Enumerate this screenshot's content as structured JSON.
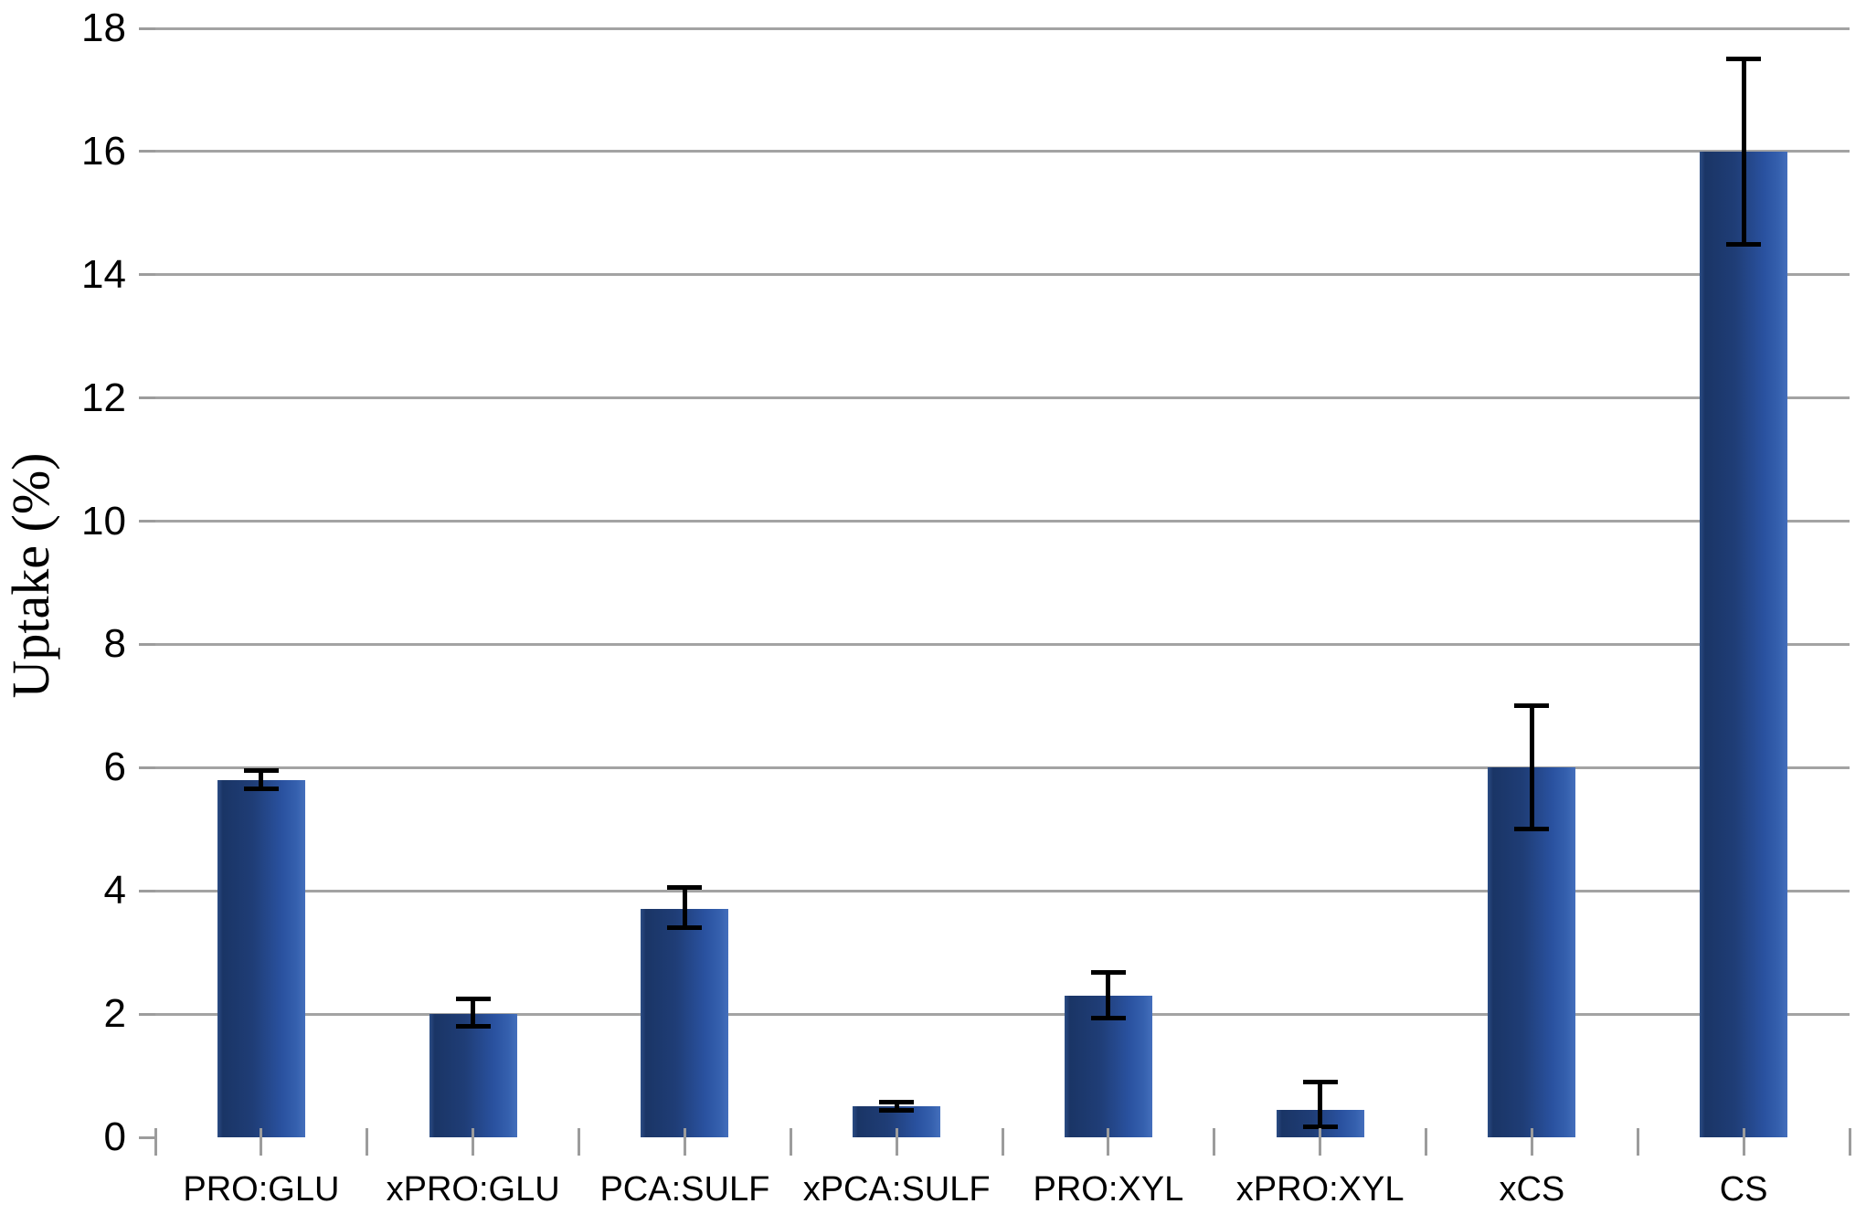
{
  "chart_data": {
    "type": "bar",
    "title": "",
    "ylabel": "Uptake (%)",
    "xlabel": "",
    "categories": [
      "PRO:GLU",
      "xPRO:GLU",
      "PCA:SULF",
      "xPCA:SULF",
      "PRO:XYL",
      "xPRO:XYL",
      "xCS",
      "CS"
    ],
    "values": [
      5.8,
      2.0,
      3.7,
      0.5,
      2.3,
      0.45,
      6.0,
      16.0
    ],
    "error_plus": [
      0.15,
      0.25,
      0.35,
      0.07,
      0.37,
      0.45,
      1.0,
      1.5
    ],
    "error_minus": [
      0.15,
      0.2,
      0.3,
      0.07,
      0.37,
      0.28,
      1.0,
      1.5
    ],
    "ylim": [
      0,
      18
    ],
    "yticks": [
      0,
      2,
      4,
      6,
      8,
      10,
      12,
      14,
      16,
      18
    ],
    "grid": true,
    "legend": false,
    "bar_style": "vertical-gradient-blue-excel"
  },
  "colors": {
    "bar_gradient": [
      [
        "#2c4d85",
        0
      ],
      [
        "#1a3566",
        6
      ],
      [
        "#1f3d76",
        40
      ],
      [
        "#2a52a0",
        74
      ],
      [
        "#3560ae",
        90
      ],
      [
        "#446fbc",
        100
      ]
    ],
    "gridline": "#a3a3a3",
    "axis": "#9c9c9c",
    "error_bar": "#000000",
    "text": "#000000",
    "background": "#ffffff"
  }
}
